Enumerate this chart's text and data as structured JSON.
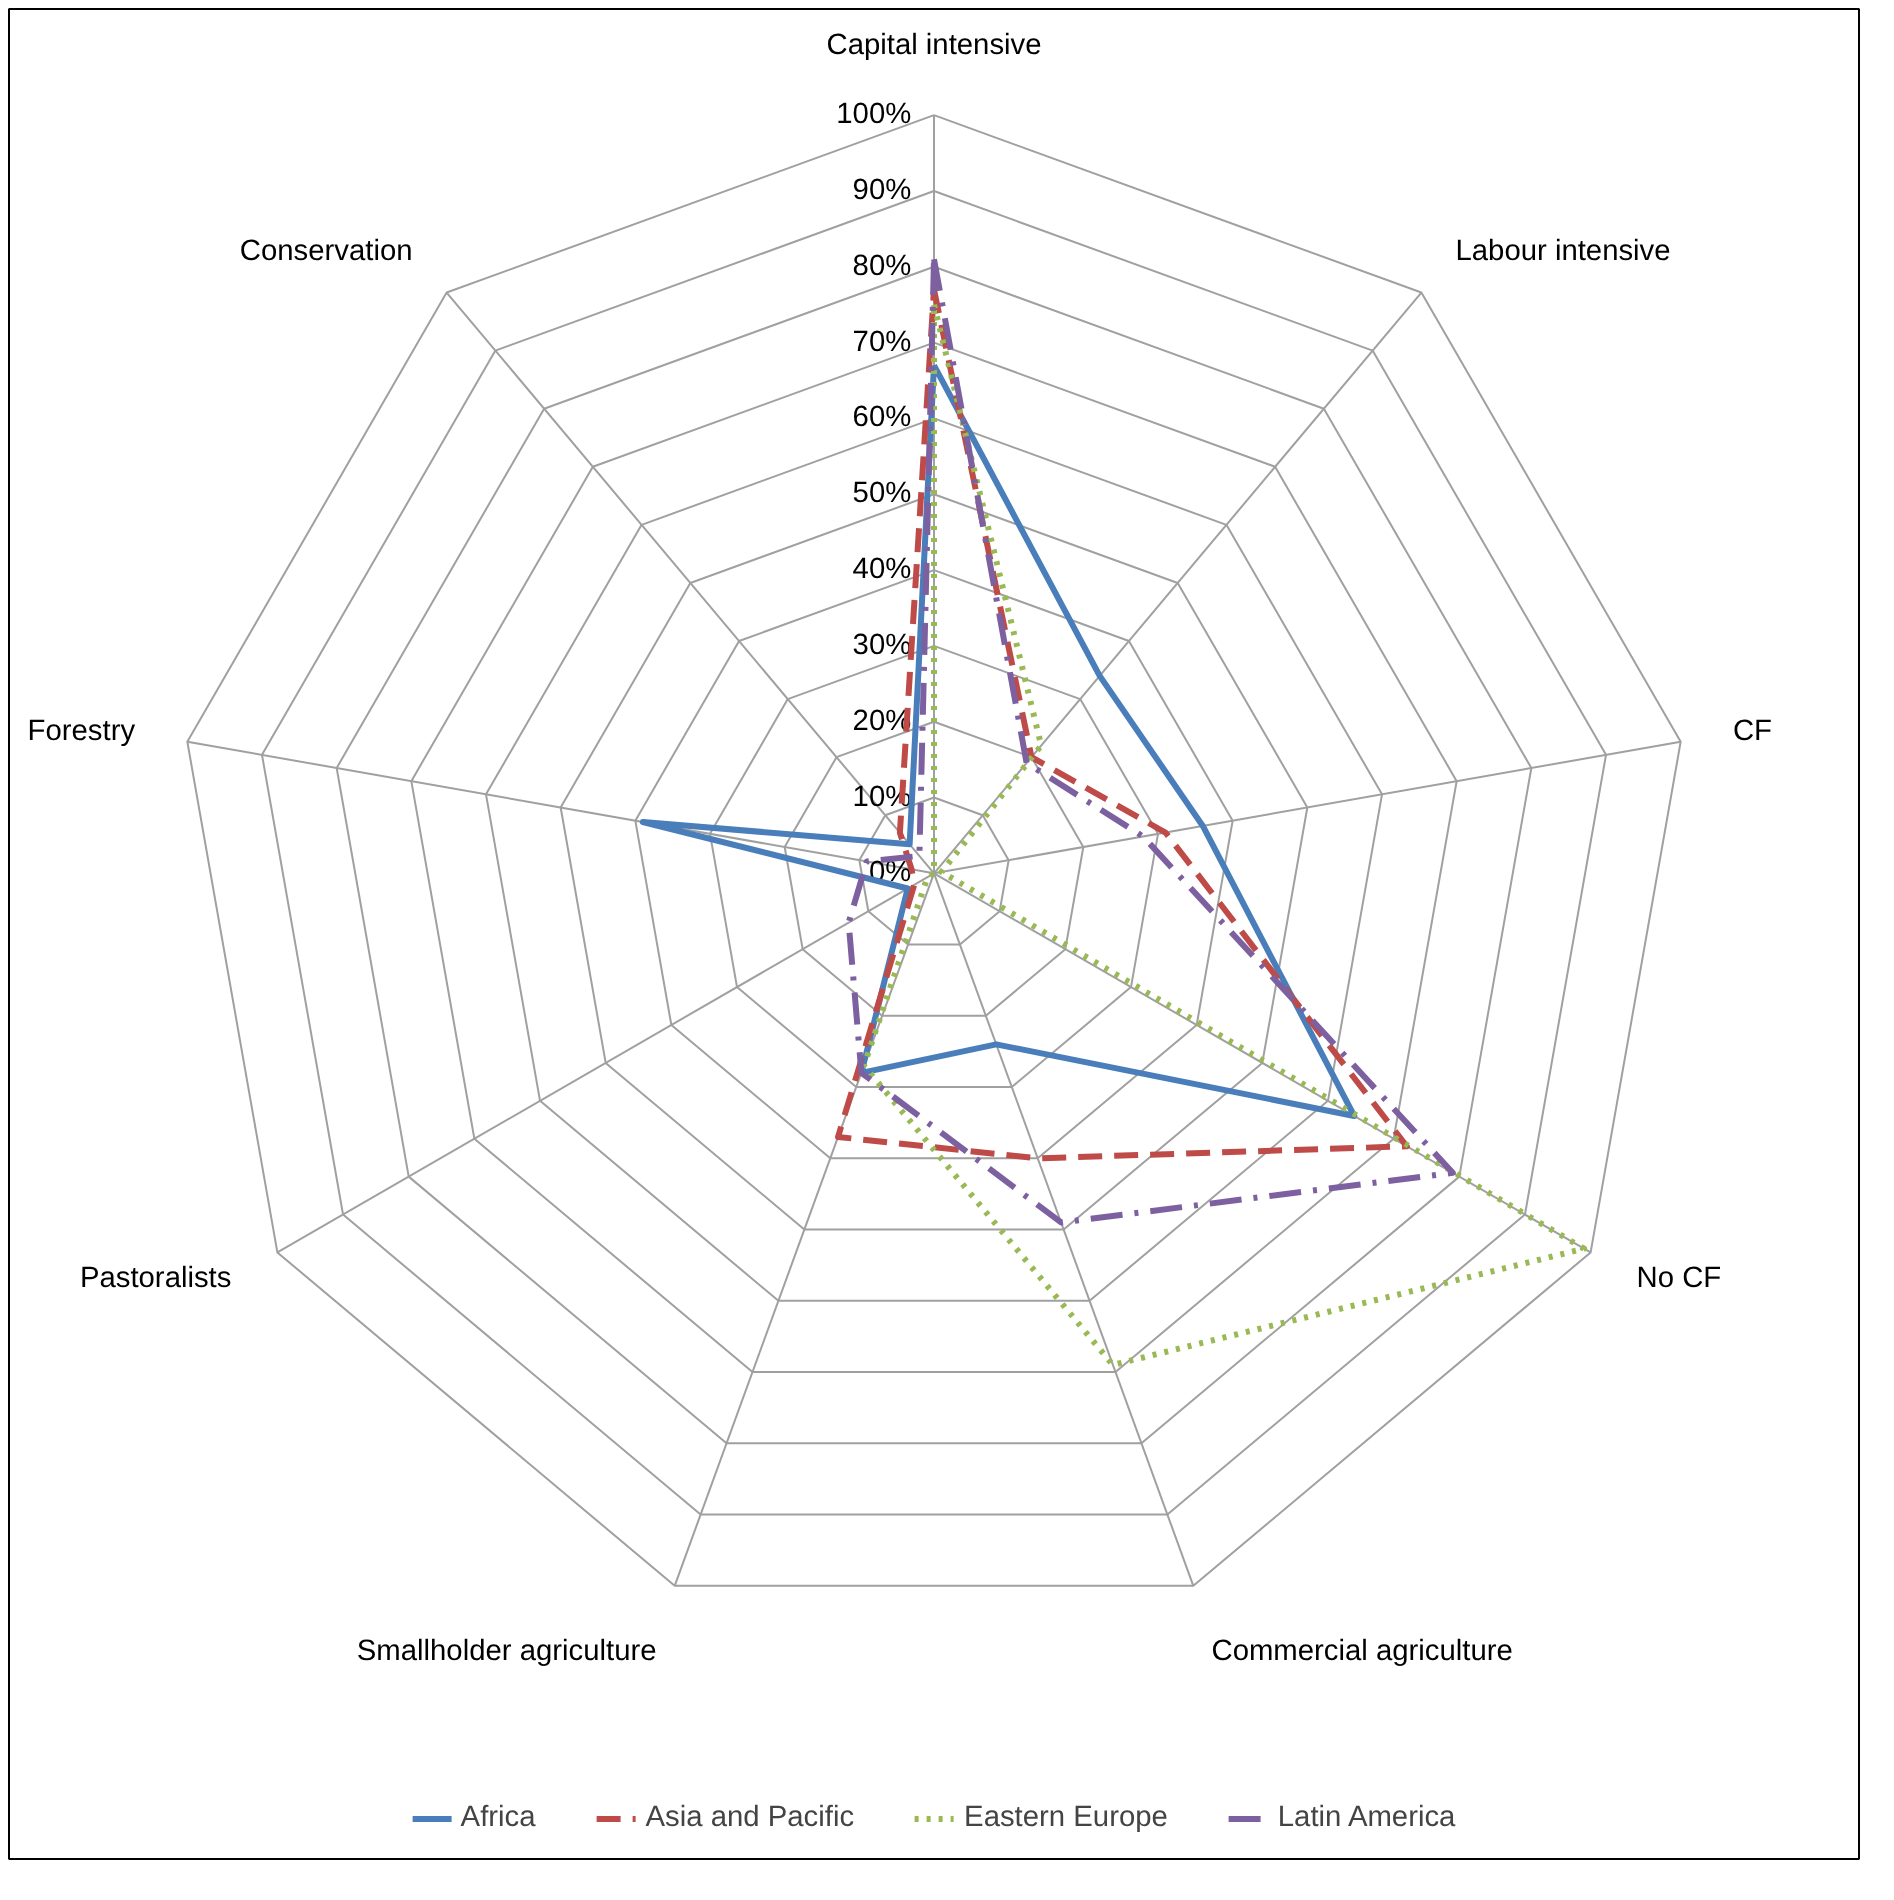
{
  "chart_data": {
    "type": "radar",
    "categories": [
      "Capital intensive",
      "Labour intensive",
      "CF",
      "No CF",
      "Commercial agriculture",
      "Smallholder agriculture",
      "Pastoralists",
      "Forestry",
      "Conservation"
    ],
    "ylim": [
      0,
      100
    ],
    "yticks": [
      {
        "value": 0,
        "label": "0%"
      },
      {
        "value": 10,
        "label": "10%"
      },
      {
        "value": 20,
        "label": "20%"
      },
      {
        "value": 30,
        "label": "30%"
      },
      {
        "value": 40,
        "label": "40%"
      },
      {
        "value": 50,
        "label": "50%"
      },
      {
        "value": 60,
        "label": "60%"
      },
      {
        "value": 70,
        "label": "70%"
      },
      {
        "value": 80,
        "label": "80%"
      },
      {
        "value": 90,
        "label": "90%"
      },
      {
        "value": 100,
        "label": "100%"
      }
    ],
    "grid": true,
    "legend": "bottom",
    "series": [
      {
        "name": "Africa",
        "color": "#4a7ebb",
        "line_style": "solid",
        "values": [
          67,
          34,
          36,
          64,
          24,
          28,
          4,
          39,
          5
        ]
      },
      {
        "name": "Asia and Pacific",
        "color": "#be4b48",
        "line_style": "dashed",
        "values": [
          77,
          20,
          31,
          72,
          40,
          37,
          3,
          3,
          7
        ]
      },
      {
        "name": "Eastern Europe",
        "color": "#98b954",
        "line_style": "dotted",
        "values": [
          75,
          22,
          1,
          99,
          69,
          27,
          1,
          0,
          0
        ]
      },
      {
        "name": "Latin America",
        "color": "#7d60a0",
        "line_style": "dashdot",
        "values": [
          81,
          19,
          28,
          79,
          49,
          28,
          13,
          9,
          3
        ]
      }
    ]
  }
}
